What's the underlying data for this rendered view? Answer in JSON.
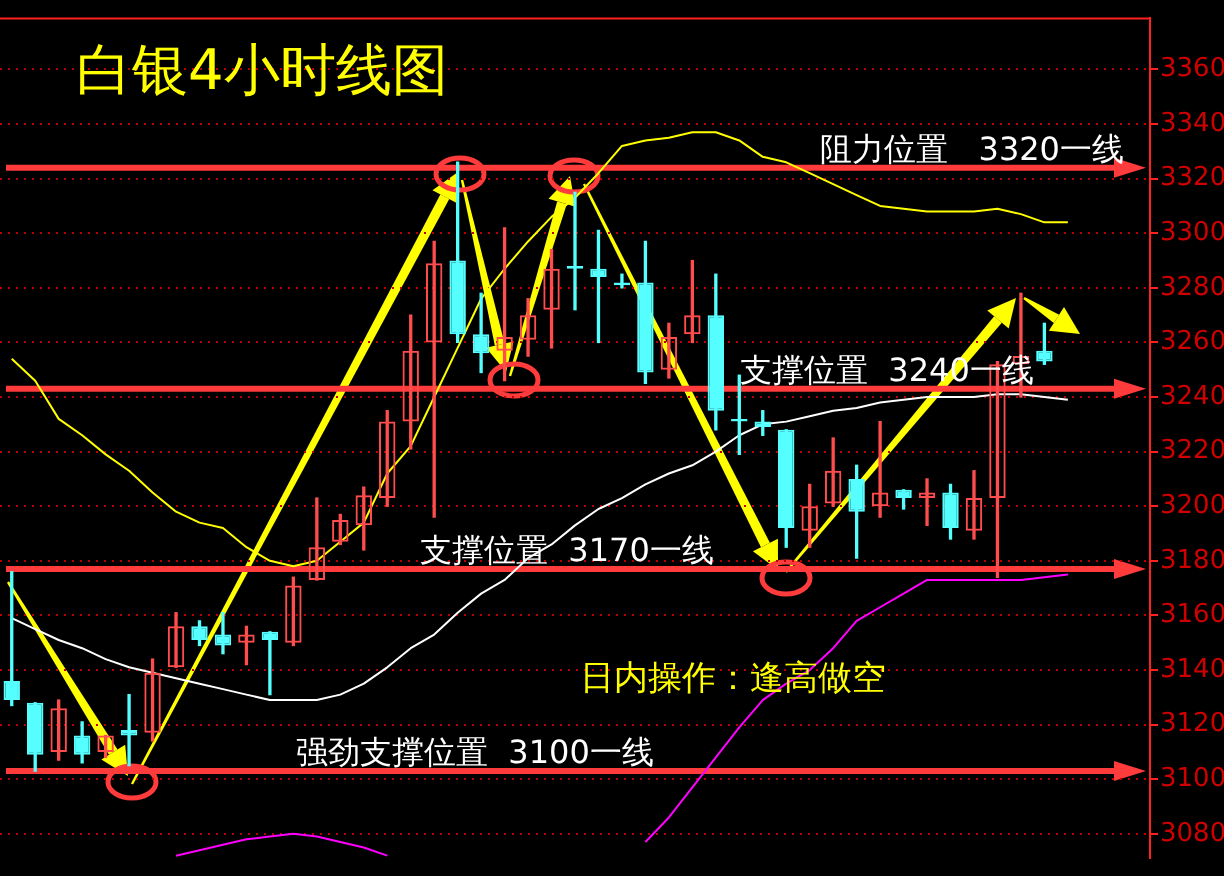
{
  "chart_data": {
    "type": "candlestick",
    "title": "白银4小时线图",
    "categories": [
      null,
      null,
      null,
      null,
      null,
      null,
      null,
      null,
      null,
      null,
      null,
      null,
      null,
      null,
      null,
      null,
      null,
      null,
      null,
      null,
      null,
      null,
      null,
      null,
      null,
      null,
      null,
      null,
      null,
      null,
      null,
      null,
      null,
      null,
      null,
      null,
      null,
      null,
      null,
      null,
      null,
      null,
      null,
      null,
      null,
      null,
      null,
      null,
      null
    ],
    "ohlc": [
      [
        3136,
        3176,
        3127,
        3129
      ],
      [
        3128,
        3128,
        3103,
        3109
      ],
      [
        3110,
        3129,
        3107,
        3126
      ],
      [
        3116,
        3121,
        3106,
        3109
      ],
      [
        3110,
        3116,
        3108,
        3116
      ],
      [
        3118,
        3131,
        3105,
        3116
      ],
      [
        3117,
        3144,
        3114,
        3139
      ],
      [
        3141,
        3161,
        3141,
        3156
      ],
      [
        3156,
        3158,
        3149,
        3151
      ],
      [
        3153,
        3161,
        3146,
        3149
      ],
      [
        3150,
        3156,
        3142,
        3153
      ],
      [
        3154,
        3154,
        3131,
        3151
      ],
      [
        3150,
        3174,
        3149,
        3171
      ],
      [
        3173,
        3203,
        3173,
        3185
      ],
      [
        3187,
        3197,
        3186,
        3195
      ],
      [
        3193,
        3207,
        3184,
        3204
      ],
      [
        3203,
        3235,
        3200,
        3231
      ],
      [
        3231,
        3270,
        3221,
        3257
      ],
      [
        3260,
        3297,
        3196,
        3289
      ],
      [
        3290,
        3326,
        3260,
        3263
      ],
      [
        3263,
        3278,
        3249,
        3256
      ],
      [
        3257,
        3302,
        3246,
        3262
      ],
      [
        3261,
        3276,
        3255,
        3270
      ],
      [
        3272,
        3294,
        3258,
        3287
      ],
      [
        3288,
        3315,
        3272,
        3287
      ],
      [
        3287,
        3301,
        3260,
        3284
      ],
      [
        3282,
        3285,
        3280,
        3281
      ],
      [
        3282,
        3297,
        3245,
        3249
      ],
      [
        3250,
        3267,
        3247,
        3262
      ],
      [
        3263,
        3290,
        3260,
        3270
      ],
      [
        3270,
        3285,
        3228,
        3235
      ],
      [
        3232,
        3248,
        3219,
        3231
      ],
      [
        3231,
        3235,
        3226,
        3229
      ],
      [
        3228,
        3228,
        3185,
        3192
      ],
      [
        3191,
        3208,
        3185,
        3200
      ],
      [
        3201,
        3225,
        3200,
        3213
      ],
      [
        3210,
        3215,
        3181,
        3198
      ],
      [
        3200,
        3231,
        3196,
        3205
      ],
      [
        3206,
        3206,
        3199,
        3203
      ],
      [
        3203,
        3210,
        3193,
        3205
      ],
      [
        3205,
        3208,
        3188,
        3192
      ],
      [
        3191,
        3213,
        3188,
        3203
      ],
      [
        3203,
        3253,
        3174,
        3252
      ],
      [
        3252,
        3278,
        3240,
        3255
      ],
      [
        3257,
        3267,
        3252,
        3253
      ],
      null,
      null,
      null,
      null
    ],
    "series": [
      {
        "type": "line",
        "color": "#ffff00",
        "values": [
          3254,
          3246,
          3232,
          3226,
          3219,
          3213,
          3205,
          3198,
          3194,
          3192,
          3185,
          3180,
          3178,
          3180,
          3187,
          3194,
          3212,
          3222,
          3240,
          3258,
          3276,
          3287,
          3297,
          3306,
          3313,
          3322,
          3332,
          3334,
          3335,
          3337,
          3337,
          3334,
          3328,
          3326,
          3322,
          3318,
          3314,
          3310,
          3309,
          3308,
          3308,
          3308,
          3309,
          3307,
          3304,
          3304,
          null,
          null,
          null
        ]
      },
      {
        "type": "line",
        "color": "#ffffff",
        "values": [
          3159,
          3155,
          3151,
          3148,
          3144,
          3141,
          3139,
          3137,
          3135,
          3133,
          3131,
          3129,
          3129,
          3129,
          3131,
          3135,
          3141,
          3148,
          3153,
          3161,
          3168,
          3173,
          3181,
          3186,
          3193,
          3199,
          3203,
          3208,
          3212,
          3215,
          3220,
          3226,
          3230,
          3231,
          3233,
          3235,
          3236,
          3238,
          3239,
          3240,
          3240,
          3240,
          3241,
          3241,
          3240,
          3239,
          null,
          null,
          null
        ]
      },
      {
        "type": "line",
        "color": "#ff00ff",
        "values": [
          null,
          null,
          null,
          null,
          null,
          null,
          null,
          3072,
          3074,
          3076,
          3078,
          3079,
          3080,
          3079,
          3077,
          3075,
          3072,
          null,
          null,
          null,
          null,
          null,
          null,
          null,
          null,
          null,
          null,
          3077,
          3086,
          3097,
          3108,
          3119,
          3129,
          3135,
          3140,
          3148,
          3158,
          3163,
          3168,
          3173,
          3173,
          3173,
          3173,
          3173,
          3174,
          3175,
          null,
          null,
          null
        ]
      }
    ],
    "ylim": [
      3071,
      3379
    ],
    "yticks": [
      3080,
      3100,
      3120,
      3140,
      3160,
      3180,
      3200,
      3220,
      3240,
      3260,
      3280,
      3300,
      3320,
      3340,
      3360
    ],
    "grid": "y",
    "legend": false,
    "marker": "none",
    "tick_labels": "y",
    "ref_lines": [
      {
        "axis": "y",
        "value": 3324,
        "label": "阻力位置   3320一线",
        "color": "#ff3b3b"
      },
      {
        "axis": "y",
        "value": 3243,
        "label": "支撑位置  3240一线",
        "color": "#ff3b3b"
      },
      {
        "axis": "y",
        "value": 3177,
        "label": "支撑位置  3170一线",
        "color": "#ff3b3b"
      },
      {
        "axis": "y",
        "value": 3103,
        "label": "强劲支撑位置  3100一线",
        "color": "#ff3b3b"
      }
    ],
    "annotations": [
      "日内操作：逢高做空"
    ]
  }
}
